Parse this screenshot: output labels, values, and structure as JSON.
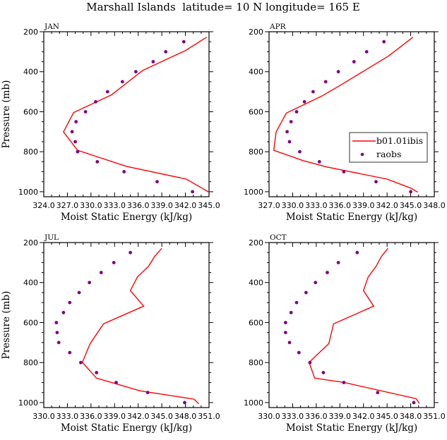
{
  "figure_title": "Marshall Islands  latitude= 10 N longitude= 165 E",
  "colors": {
    "model": "#ff0000",
    "obs": "#800080",
    "axis": "#000000"
  },
  "legend": {
    "placement": "center-right of APR panel",
    "entries": [
      {
        "label": "b01.01ibis",
        "marker": "line"
      },
      {
        "label": "raobs",
        "marker": "dot"
      }
    ]
  },
  "chart_data": [
    {
      "type": "line",
      "panel": "JAN",
      "title": "JAN",
      "xlabel": "Moist Static Energy (kJ/kg)",
      "ylabel": "Pressure (mb)",
      "xlim": [
        324,
        345
      ],
      "ylim": [
        200,
        1025
      ],
      "y_inverted": true,
      "xticks": [
        "324.0",
        "327.0",
        "330.0",
        "333.0",
        "336.0",
        "339.0",
        "342.0",
        "345.0"
      ],
      "yticks": [
        "200",
        "400",
        "600",
        "800",
        "1000"
      ],
      "series": [
        {
          "name": "b01.01ibis",
          "kind": "line",
          "x": [
            344.7,
            342.0,
            336.6,
            332.6,
            327.8,
            326.5,
            328.3,
            334.5,
            342.1,
            344.1,
            345.0
          ],
          "y": [
            227,
            294,
            393,
            516,
            604,
            701,
            793,
            873,
            937,
            982,
            1002
          ]
        },
        {
          "name": "raobs",
          "kind": "scatter",
          "x": [
            341.8,
            339.5,
            337.9,
            335.7,
            334.0,
            332.1,
            330.6,
            329.3,
            328.1,
            327.6,
            328.0,
            328.3,
            330.8,
            334.2,
            338.4,
            342.9
          ],
          "y": [
            250,
            300,
            350,
            400,
            450,
            500,
            550,
            600,
            650,
            700,
            750,
            800,
            850,
            900,
            950,
            1000
          ]
        }
      ]
    },
    {
      "type": "line",
      "panel": "APR",
      "title": "APR",
      "xlabel": "Moist Static Energy (kJ/kg)",
      "ylabel": "",
      "xlim": [
        327,
        348
      ],
      "ylim": [
        200,
        1025
      ],
      "y_inverted": true,
      "xticks": [
        "327.0",
        "330.0",
        "333.0",
        "336.0",
        "339.0",
        "342.0",
        "345.0",
        "348.0"
      ],
      "yticks": [
        "200",
        "400",
        "600",
        "800",
        "1000"
      ],
      "series": [
        {
          "name": "b01.01ibis",
          "kind": "line",
          "x": [
            345.3,
            342.2,
            339.4,
            336.4,
            333.7,
            329.2,
            327.9,
            327.6,
            331.3,
            334.3,
            342.0,
            345.0,
            345.9
          ],
          "y": [
            227,
            321,
            388,
            460,
            522,
            607,
            701,
            793,
            844,
            876,
            937,
            982,
            1002
          ]
        },
        {
          "name": "raobs",
          "kind": "scatter",
          "x": [
            341.6,
            339.4,
            337.8,
            335.8,
            334.2,
            332.6,
            331.5,
            330.5,
            329.8,
            329.3,
            329.6,
            330.9,
            333.4,
            336.5,
            340.6,
            345.0
          ],
          "y": [
            250,
            300,
            350,
            400,
            450,
            500,
            550,
            600,
            650,
            700,
            750,
            800,
            850,
            900,
            950,
            1000
          ]
        }
      ]
    },
    {
      "type": "line",
      "panel": "JUL",
      "title": "JUL",
      "xlabel": "Moist Static Energy (kJ/kg)",
      "ylabel": "Pressure (mb)",
      "xlim": [
        330,
        351
      ],
      "ylim": [
        200,
        1025
      ],
      "y_inverted": true,
      "xticks": [
        "330.0",
        "333.0",
        "336.0",
        "339.0",
        "342.0",
        "345.0",
        "348.0",
        "351.0"
      ],
      "yticks": [
        "200",
        "400",
        "600",
        "800",
        "1000"
      ],
      "series": [
        {
          "name": "b01.01ibis",
          "kind": "line",
          "x": [
            345.0,
            344.1,
            343.3,
            341.9,
            341.0,
            342.7,
            337.6,
            335.9,
            334.9,
            336.7,
            339.0,
            342.2,
            349.1,
            349.7
          ],
          "y": [
            229,
            269,
            319,
            372,
            440,
            518,
            606,
            705,
            799,
            878,
            904,
            941,
            983,
            1006
          ]
        },
        {
          "name": "raobs",
          "kind": "scatter",
          "x": [
            341.0,
            338.9,
            337.3,
            335.8,
            334.5,
            333.3,
            332.5,
            331.6,
            331.7,
            331.9,
            333.3,
            334.7,
            336.7,
            339.2,
            343.2,
            347.9
          ],
          "y": [
            250,
            300,
            350,
            400,
            450,
            500,
            550,
            600,
            650,
            700,
            750,
            800,
            850,
            900,
            950,
            1000
          ]
        }
      ]
    },
    {
      "type": "line",
      "panel": "OCT",
      "title": "OCT",
      "xlabel": "Moist Static Energy (kJ/kg)",
      "ylabel": "",
      "xlim": [
        330,
        351
      ],
      "ylim": [
        200,
        1025
      ],
      "y_inverted": true,
      "xticks": [
        "330.0",
        "333.0",
        "336.0",
        "339.0",
        "342.0",
        "345.0",
        "348.0",
        "351.0"
      ],
      "yticks": [
        "200",
        "400",
        "600",
        "800",
        "1000"
      ],
      "series": [
        {
          "name": "b01.01ibis",
          "kind": "line",
          "x": [
            345.1,
            344.3,
            343.6,
            342.6,
            342.0,
            343.3,
            338.2,
            337.6,
            335.1,
            335.8,
            339.5,
            348.7,
            349.1
          ],
          "y": [
            229,
            269,
            319,
            372,
            440,
            518,
            606,
            705,
            799,
            878,
            899,
            981,
            1004
          ]
        },
        {
          "name": "raobs",
          "kind": "scatter",
          "x": [
            341.2,
            338.8,
            337.4,
            335.9,
            334.7,
            333.5,
            332.8,
            332.1,
            332.1,
            332.6,
            333.8,
            335.2,
            336.9,
            339.5,
            343.8,
            348.4
          ],
          "y": [
            250,
            300,
            350,
            400,
            450,
            500,
            550,
            600,
            650,
            700,
            750,
            800,
            850,
            900,
            950,
            1000
          ]
        }
      ]
    }
  ]
}
